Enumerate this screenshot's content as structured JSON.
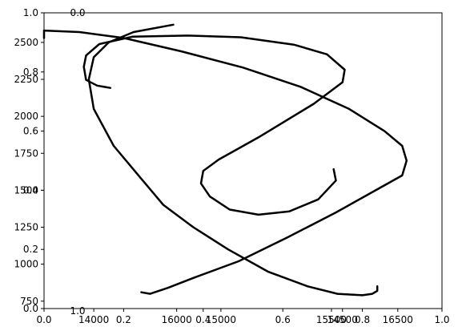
{
  "chart_data": {
    "type": "line",
    "title": "",
    "xlabel": "",
    "ylabel": "",
    "grid": false,
    "legend": "none",
    "line_color": "#000000",
    "overlay_axes": {
      "x_ticks": [
        "0.0",
        "0.2",
        "0.4",
        "0.6",
        "0.8",
        "1.0"
      ],
      "y_ticks": [
        "0.0",
        "0.2",
        "0.4",
        "0.6",
        "0.8",
        "1.0"
      ],
      "xlim": [
        0,
        1
      ],
      "ylim": [
        0,
        1
      ]
    },
    "panels": [
      {
        "name": "left",
        "xlim": [
          13900,
          14700
        ],
        "x_ticks": [
          "14000",
          "14500"
        ],
        "ylim": [
          700,
          2700
        ],
        "y_ticks": [
          "750",
          "1000",
          "1250",
          "1500",
          "1750",
          "2000",
          "2250",
          "2500"
        ],
        "top_label": "0.0",
        "bottom_label": "1.0",
        "series": [
          {
            "x": [
              14160,
              14080,
              14030,
              14000,
              13990,
              14000,
              14040,
              14090,
              14140,
              14200,
              14270,
              14350,
              14430,
              14490,
              14540,
              14560,
              14570,
              14570
            ],
            "y": [
              2620,
              2570,
              2500,
              2400,
              2250,
              2050,
              1800,
              1600,
              1400,
              1250,
              1100,
              950,
              850,
              800,
              790,
              800,
              820,
              850
            ]
          }
        ]
      },
      {
        "name": "center",
        "xlim": [
          14200,
          16000
        ],
        "x_ticks": [
          "15000",
          "15500"
        ],
        "ylim": [
          0.48,
          1.0
        ],
        "series": [
          {
            "x": [
              14500,
              14440,
              14390,
              14380,
              14390,
              14450,
              14600,
              14850,
              15090,
              15330,
              15480,
              15560,
              15550,
              15420,
              15170,
              14990,
              14920,
              14910,
              14950,
              15040,
              15170,
              15310,
              15440,
              15520,
              15510
            ],
            "y": [
              0.868,
              0.872,
              0.882,
              0.905,
              0.925,
              0.945,
              0.958,
              0.96,
              0.957,
              0.944,
              0.927,
              0.9,
              0.878,
              0.84,
              0.781,
              0.742,
              0.722,
              0.7,
              0.677,
              0.654,
              0.645,
              0.651,
              0.672,
              0.705,
              0.725
            ]
          }
        ]
      },
      {
        "name": "right",
        "xlim": [
          15700,
          16600
        ],
        "x_ticks": [
          "16000",
          "16500"
        ],
        "ylim": [
          700,
          2700
        ],
        "series": [
          {
            "x": [
              15700,
              15700,
              15780,
              15880,
              16010,
              16150,
              16280,
              16390,
              16470,
              16510,
              16520,
              16510,
              16450,
              16360,
              16250,
              16140,
              16040,
              15980,
              15940,
              15920
            ],
            "y": [
              2530,
              2580,
              2570,
              2530,
              2440,
              2330,
              2200,
              2050,
              1900,
              1800,
              1700,
              1600,
              1500,
              1350,
              1180,
              1020,
              910,
              840,
              800,
              810
            ]
          }
        ]
      }
    ]
  }
}
